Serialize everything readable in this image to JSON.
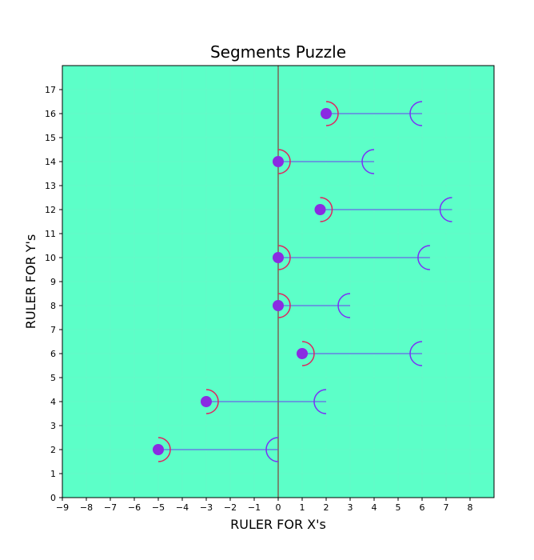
{
  "chart_data": {
    "type": "scatter",
    "title": "Segments Puzzle",
    "xlabel": "RULER FOR X's",
    "ylabel": "RULER FOR Y's",
    "xlim": [
      -9,
      9
    ],
    "ylim": [
      0,
      18
    ],
    "xticks": [
      "−9",
      "−8",
      "−7",
      "−6",
      "−5",
      "−4",
      "−3",
      "−2",
      "−1",
      "0",
      "1",
      "2",
      "3",
      "4",
      "5",
      "6",
      "7",
      "8"
    ],
    "yticks": [
      "0",
      "1",
      "2",
      "3",
      "4",
      "5",
      "6",
      "7",
      "8",
      "9",
      "10",
      "11",
      "12",
      "13",
      "14",
      "15",
      "16",
      "17"
    ],
    "xtick_values": [
      -9,
      -8,
      -7,
      -6,
      -5,
      -4,
      -3,
      -2,
      -1,
      0,
      1,
      2,
      3,
      4,
      5,
      6,
      7,
      8
    ],
    "ytick_values": [
      0,
      1,
      2,
      3,
      4,
      5,
      6,
      7,
      8,
      9,
      10,
      11,
      12,
      13,
      14,
      15,
      16,
      17
    ],
    "vertical_reference_line_x": 0,
    "segments": [
      {
        "y": 16,
        "x_start": 2,
        "x_end": 6
      },
      {
        "y": 14,
        "x_start": 0,
        "x_end": 4
      },
      {
        "y": 12,
        "x_start": 1.75,
        "x_end": 7.25
      },
      {
        "y": 10,
        "x_start": 0,
        "x_end": 6.33
      },
      {
        "y": 8,
        "x_start": 0,
        "x_end": 3
      },
      {
        "y": 6,
        "x_start": 1,
        "x_end": 6
      },
      {
        "y": 4,
        "x_start": -3,
        "x_end": 2
      },
      {
        "y": 2,
        "x_start": -5,
        "x_end": 0
      }
    ],
    "grid": true,
    "colors": {
      "background": "#5cffc8",
      "grid": "#6cf5c6",
      "point": "#8a2be2",
      "segment_line": "#6a3df0",
      "left_arc": "#e0245e",
      "right_arc": "#7b2ff7",
      "reference_line": "#8b1a1a"
    }
  }
}
